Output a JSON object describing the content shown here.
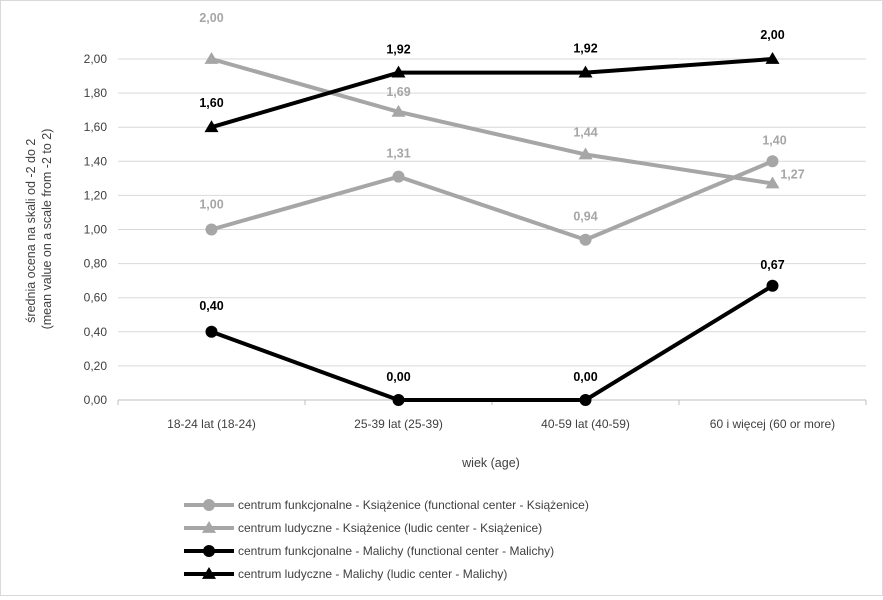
{
  "chart_data": {
    "type": "line",
    "categories": [
      "18-24 lat (18-24)",
      "25-39 lat (25-39)",
      "40-59 lat (40-59)",
      "60 i więcej (60 or more)"
    ],
    "xlabel": "wiek (age)",
    "ylabel_lines": [
      "średnia ocena na skali od -2 do 2",
      "(mean value on a scale from -2 to 2)"
    ],
    "ylim": [
      0,
      2
    ],
    "ytick_step": 0.2,
    "ytick_labels": [
      "0,00",
      "0,20",
      "0,40",
      "0,60",
      "0,80",
      "1,00",
      "1,20",
      "1,40",
      "1,60",
      "1,80",
      "2,00"
    ],
    "grid": true,
    "legend_position": "bottom",
    "series": [
      {
        "name": "centrum funkcjonalne - Książenice (functional center - Książenice)",
        "values": [
          1.0,
          1.31,
          0.94,
          1.4
        ],
        "labels": [
          "1,00",
          "1,31",
          "0,94",
          "1,40"
        ],
        "color": "#a6a6a6",
        "marker": "circle"
      },
      {
        "name": "centrum ludyczne - Książenice (ludic center - Książenice)",
        "values": [
          2.0,
          1.69,
          1.44,
          1.27
        ],
        "labels": [
          "2,00",
          "1,69",
          "1,44",
          "1,27"
        ],
        "color": "#a6a6a6",
        "marker": "triangle"
      },
      {
        "name": "centrum funkcjonalne - Malichy (functional center - Malichy)",
        "values": [
          0.4,
          0.0,
          0.0,
          0.67
        ],
        "labels": [
          "0,40",
          "0,00",
          "0,00",
          "0,67"
        ],
        "color": "#000000",
        "marker": "circle"
      },
      {
        "name": "centrum ludyczne - Malichy (ludic center - Malichy)",
        "values": [
          1.6,
          1.92,
          1.92,
          2.0
        ],
        "labels": [
          "1,60",
          "1,92",
          "1,92",
          "2,00"
        ],
        "color": "#000000",
        "marker": "triangle"
      }
    ]
  }
}
